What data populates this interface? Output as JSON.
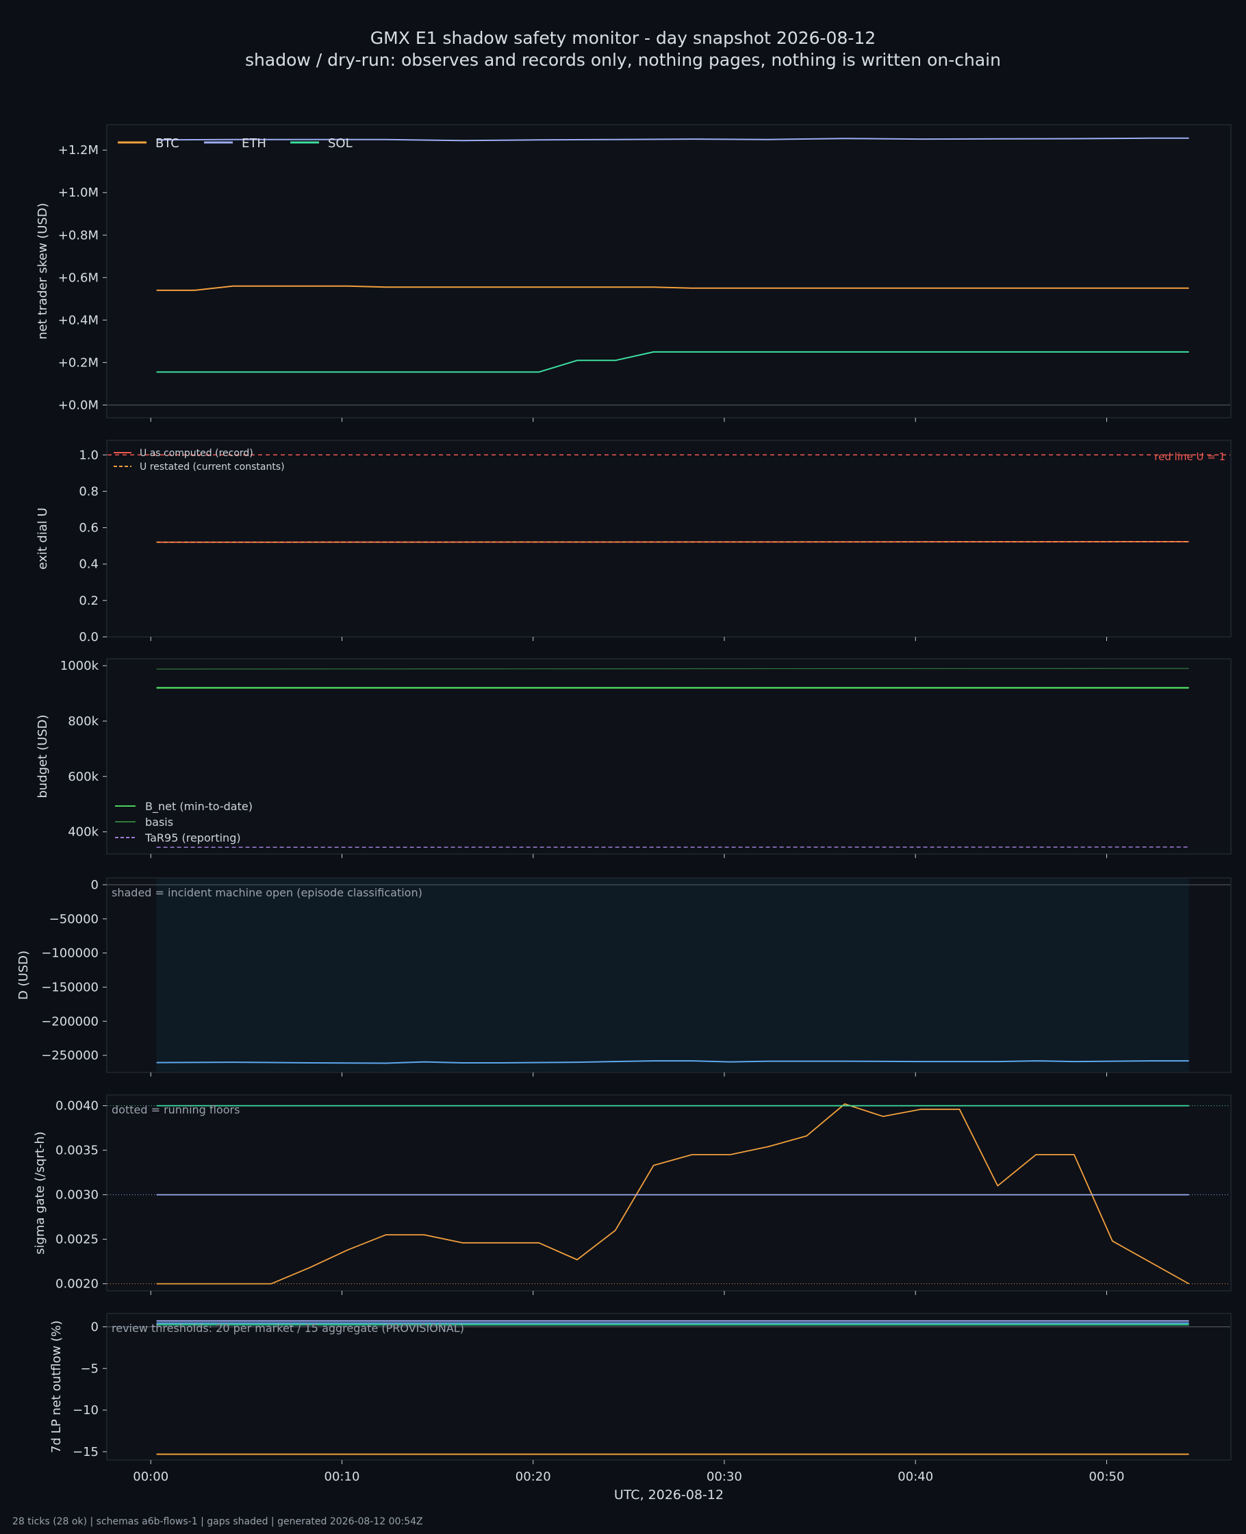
{
  "title": "GMX E1 shadow safety monitor - day snapshot 2026-08-12",
  "subtitle": "shadow / dry-run: observes and records only, nothing pages, nothing is written on-chain",
  "footer": "28 ticks (28 ok) | schemas a6b-flows-1 | gaps shaded | generated 2026-08-12 00:54Z",
  "colors": {
    "background": "#0c1016",
    "panel": "#0e1118",
    "frame": "#2c323c",
    "btc": "#f2a03d",
    "eth": "#9eaef5",
    "sol": "#3de0a0",
    "red_line": "#f05a52",
    "green": "#4cd15c",
    "basis": "#2f7a3c",
    "purple": "#a07ed8",
    "blue": "#5ea8ee",
    "shade": "#0e1a24",
    "note": "#9aa2ad"
  },
  "chart_data": [
    {
      "type": "line",
      "ylabel": "net trader skew (USD)",
      "ylim": [
        -0.06,
        1.32
      ],
      "yticks": [
        0,
        0.2,
        0.4,
        0.6,
        0.8,
        1.0,
        1.2
      ],
      "ytick_labels": [
        "+0.0M",
        "+0.2M",
        "+0.4M",
        "+0.6M",
        "+0.8M",
        "+1.0M",
        "+1.2M"
      ],
      "legend": "top-left",
      "series": [
        {
          "name": "BTC",
          "color": "#f2a03d",
          "width": 2,
          "x": [
            0.3,
            2.3,
            4.3,
            6.3,
            8.3,
            10.3,
            12.3,
            14.3,
            16.3,
            18.3,
            20.3,
            22.3,
            24.3,
            26.3,
            28.3,
            30.3,
            32.3,
            34.3,
            36.3,
            38.3,
            40.3,
            42.3,
            44.3,
            46.3,
            48.3,
            50.3,
            52.3,
            54.3
          ],
          "y": [
            0.54,
            0.54,
            0.56,
            0.56,
            0.56,
            0.56,
            0.555,
            0.555,
            0.555,
            0.555,
            0.555,
            0.555,
            0.555,
            0.555,
            0.55,
            0.55,
            0.55,
            0.55,
            0.55,
            0.55,
            0.55,
            0.55,
            0.55,
            0.55,
            0.55,
            0.55,
            0.55,
            0.55
          ]
        },
        {
          "name": "ETH",
          "color": "#9eaef5",
          "width": 2,
          "x": [
            0.3,
            4.3,
            8.3,
            12.3,
            16.3,
            20.3,
            24.3,
            28.3,
            32.3,
            36.3,
            40.3,
            44.3,
            48.3,
            52.3,
            54.3
          ],
          "y": [
            1.248,
            1.25,
            1.25,
            1.25,
            1.245,
            1.248,
            1.25,
            1.252,
            1.25,
            1.255,
            1.252,
            1.253,
            1.254,
            1.256,
            1.256
          ]
        },
        {
          "name": "SOL",
          "color": "#3de0a0",
          "width": 2,
          "x": [
            0.3,
            20.3,
            22.3,
            24.3,
            26.3,
            54.3
          ],
          "y": [
            0.155,
            0.155,
            0.21,
            0.21,
            0.25,
            0.25
          ]
        }
      ],
      "hlines": [
        {
          "y": 0,
          "color": "#59606b",
          "width": 1
        }
      ]
    },
    {
      "type": "line",
      "ylabel": "exit dial U",
      "ylim": [
        0,
        1.08
      ],
      "yticks": [
        0,
        0.2,
        0.4,
        0.6,
        0.8,
        1.0
      ],
      "ytick_labels": [
        "0.0",
        "0.2",
        "0.4",
        "0.6",
        "0.8",
        "1.0"
      ],
      "legend": "top-left",
      "annotation": "red line U = 1",
      "series": [
        {
          "name": "U as computed (record)",
          "color": "#f05a52",
          "width": 2,
          "x": [
            0.3,
            54.3
          ],
          "y": [
            0.52,
            0.523
          ]
        },
        {
          "name": "U restated (current constants)",
          "color": "#f2a03d",
          "width": 1.5,
          "dash": "6,4",
          "x": [
            0.3,
            54.3
          ],
          "y": [
            0.52,
            0.523
          ]
        }
      ],
      "hlines": [
        {
          "y": 1.0,
          "color": "#f05a52",
          "width": 1.5,
          "dash": "6,5"
        }
      ]
    },
    {
      "type": "line",
      "ylabel": "budget (USD)",
      "ylim": [
        320000,
        1025000
      ],
      "yticks": [
        400000,
        600000,
        800000,
        1000000
      ],
      "ytick_labels": [
        "400k",
        "600k",
        "800k",
        "1000k"
      ],
      "legend": "lower-left",
      "series": [
        {
          "name": "B_net (min-to-date)",
          "color": "#4cd15c",
          "width": 2.5,
          "x": [
            0.3,
            54.3
          ],
          "y": [
            920000,
            920000
          ]
        },
        {
          "name": "basis",
          "color": "#2f7a3c",
          "width": 1.2,
          "x": [
            0.3,
            54.3
          ],
          "y": [
            988000,
            990000
          ]
        },
        {
          "name": "TaR95 (reporting)",
          "color": "#a07ed8",
          "width": 1.5,
          "dash": "6,4",
          "x": [
            0.3,
            54.3
          ],
          "y": [
            344000,
            345000
          ]
        }
      ]
    },
    {
      "type": "line",
      "ylabel": "D (USD)",
      "ylim": [
        -275000,
        10000
      ],
      "yticks": [
        -250000,
        -200000,
        -150000,
        -100000,
        -50000,
        0
      ],
      "ytick_labels": [
        "−250000",
        "−200000",
        "−150000",
        "−100000",
        "−50000",
        "0"
      ],
      "note": "shaded = incident machine open (episode classification)",
      "shade_x": [
        0.3,
        54.3
      ],
      "series": [
        {
          "name": "",
          "color": "#5ea8ee",
          "width": 2,
          "x": [
            0.3,
            4.3,
            8.3,
            12.3,
            14.3,
            16.3,
            18.3,
            22.3,
            26.3,
            28.3,
            30.3,
            32.3,
            36.3,
            40.3,
            44.3,
            46.3,
            48.3,
            52.3,
            54.3
          ],
          "y": [
            -260500,
            -260000,
            -261000,
            -261500,
            -259500,
            -261000,
            -261000,
            -260000,
            -258000,
            -258000,
            -259500,
            -258500,
            -258500,
            -259000,
            -259000,
            -258000,
            -259000,
            -258000,
            -258000
          ]
        }
      ],
      "hlines": [
        {
          "y": 0,
          "color": "#59606b",
          "width": 1
        }
      ]
    },
    {
      "type": "line",
      "ylabel": "sigma gate (/sqrt-h)",
      "ylim": [
        0.00192,
        0.00412
      ],
      "yticks": [
        0.002,
        0.0025,
        0.003,
        0.0035,
        0.004
      ],
      "ytick_labels": [
        "0.0020",
        "0.0025",
        "0.0030",
        "0.0035",
        "0.0040"
      ],
      "note": "dotted = running floors",
      "series": [
        {
          "name": "",
          "color": "#f2a03d",
          "width": 1.8,
          "x": [
            0.3,
            2.3,
            4.3,
            6.3,
            8.3,
            10.3,
            12.3,
            14.3,
            16.3,
            18.3,
            20.3,
            22.3,
            24.3,
            26.3,
            28.3,
            30.3,
            32.3,
            34.3,
            36.3,
            38.3,
            40.3,
            42.3,
            44.3,
            46.3,
            48.3,
            50.3,
            52.3,
            54.3
          ],
          "y": [
            0.002,
            0.002,
            0.002,
            0.002,
            0.00218,
            0.00238,
            0.00255,
            0.00255,
            0.00246,
            0.00246,
            0.00246,
            0.00227,
            0.0026,
            0.00333,
            0.00345,
            0.00345,
            0.00354,
            0.00366,
            0.00402,
            0.00388,
            0.00396,
            0.00396,
            0.0031,
            0.00345,
            0.00345,
            0.00248,
            0.00224,
            0.002
          ]
        },
        {
          "name": "",
          "color": "#3de0a0",
          "width": 1.8,
          "x": [
            0.3,
            54.3
          ],
          "y": [
            0.004,
            0.004
          ]
        },
        {
          "name": "",
          "color": "#9eaef5",
          "width": 1.8,
          "x": [
            0.3,
            54.3
          ],
          "y": [
            0.003,
            0.003
          ]
        }
      ],
      "hlines": [
        {
          "y": 0.004,
          "color": "#3de0a0",
          "width": 1,
          "dash": "1,3"
        },
        {
          "y": 0.003,
          "color": "#9eaef5",
          "width": 1,
          "dash": "1,3"
        },
        {
          "y": 0.002,
          "color": "#f2a03d",
          "width": 1,
          "dash": "1,3"
        }
      ]
    },
    {
      "type": "line",
      "ylabel": "7d LP net outflow (%)",
      "ylim": [
        -16.0,
        1.6
      ],
      "yticks": [
        -15,
        -10,
        -5,
        0
      ],
      "ytick_labels": [
        "−15",
        "−10",
        "−5",
        "0"
      ],
      "xlabel": "UTC, 2026-08-12",
      "xtick_labels": [
        "00:00",
        "00:10",
        "00:20",
        "00:30",
        "00:40",
        "00:50"
      ],
      "note": "review thresholds: 20 per market / 15 aggregate (PROVISIONAL)",
      "series": [
        {
          "name": "",
          "color": "#9eaef5",
          "width": 2,
          "x": [
            0.3,
            54.3
          ],
          "y": [
            0.7,
            0.7
          ]
        },
        {
          "name": "",
          "color": "#5ea8ee",
          "width": 2,
          "x": [
            0.3,
            54.3
          ],
          "y": [
            0.45,
            0.45
          ]
        },
        {
          "name": "",
          "color": "#3de0a0",
          "width": 2,
          "x": [
            0.3,
            54.3
          ],
          "y": [
            0.25,
            0.25
          ]
        },
        {
          "name": "",
          "color": "#f2a03d",
          "width": 2,
          "x": [
            0.3,
            54.3
          ],
          "y": [
            -15.3,
            -15.3
          ]
        }
      ],
      "hlines": [
        {
          "y": 0,
          "color": "#59606b",
          "width": 1
        }
      ]
    }
  ]
}
